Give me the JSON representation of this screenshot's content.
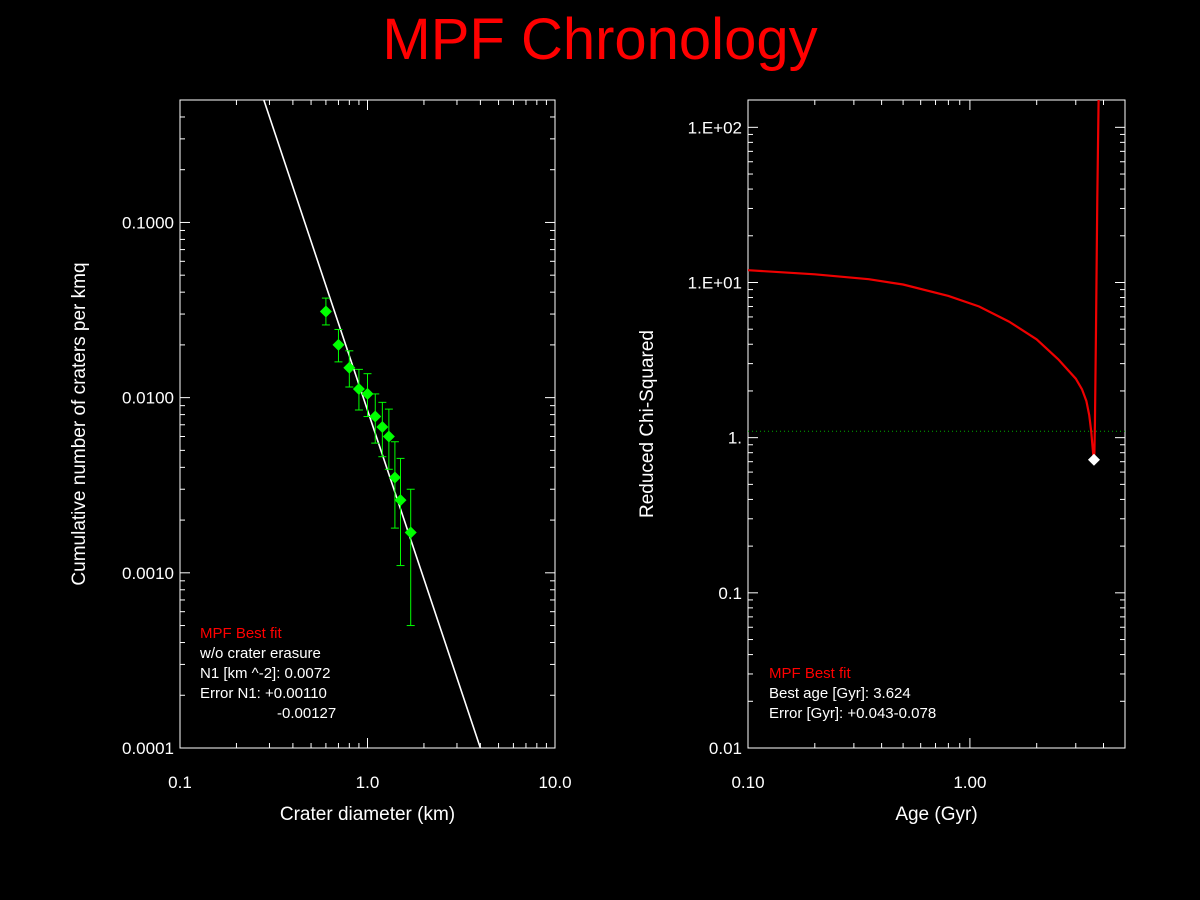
{
  "title": "MPF Chronology",
  "colors": {
    "background": "#000000",
    "title": "#ff0000",
    "axes": "#ffffff",
    "points": "#00ff00",
    "fit_line": "#ffffff",
    "chi_curve": "#ee0000",
    "reference_line": "#00aa00",
    "best_point": "#ffffff"
  },
  "left_annotation": {
    "heading": "MPF Best fit",
    "line1": "w/o crater erasure",
    "line2": "N1 [km ^-2]: 0.0072",
    "line3": "Error N1: +0.00110",
    "line4": "-0.00127"
  },
  "right_annotation": {
    "heading": "MPF Best fit",
    "line1": "Best age [Gyr]: 3.624",
    "line2": "Error [Gyr]: +0.043-0.078"
  },
  "chart_data": [
    {
      "type": "scatter",
      "xlabel": "Crater diameter (km)",
      "ylabel": "Cumulative number of craters per kmq",
      "xscale": "log",
      "yscale": "log",
      "xlim": [
        0.1,
        10.0
      ],
      "ylim": [
        0.0001,
        0.5
      ],
      "xtick_labels": [
        "0.1",
        "1.0",
        "10.0"
      ],
      "ytick_labels": [
        "0.0001",
        "0.0010",
        "0.0100",
        "0.1000"
      ],
      "points": [
        {
          "x": 0.6,
          "y": 0.031,
          "err_low": 0.026,
          "err_high": 0.037
        },
        {
          "x": 0.7,
          "y": 0.02,
          "err_low": 0.016,
          "err_high": 0.0245
        },
        {
          "x": 0.8,
          "y": 0.0148,
          "err_low": 0.0115,
          "err_high": 0.0185
        },
        {
          "x": 0.9,
          "y": 0.0112,
          "err_low": 0.0085,
          "err_high": 0.0145
        },
        {
          "x": 1.0,
          "y": 0.0105,
          "err_low": 0.0078,
          "err_high": 0.0137
        },
        {
          "x": 1.1,
          "y": 0.0078,
          "err_low": 0.0055,
          "err_high": 0.0105
        },
        {
          "x": 1.2,
          "y": 0.0068,
          "err_low": 0.0046,
          "err_high": 0.0094
        },
        {
          "x": 1.3,
          "y": 0.006,
          "err_low": 0.0039,
          "err_high": 0.0086
        },
        {
          "x": 1.4,
          "y": 0.0035,
          "err_low": 0.0018,
          "err_high": 0.0056
        },
        {
          "x": 1.5,
          "y": 0.0026,
          "err_low": 0.0011,
          "err_high": 0.0045
        },
        {
          "x": 1.7,
          "y": 0.0017,
          "err_low": 0.0005,
          "err_high": 0.003
        }
      ],
      "fit_line": [
        [
          0.28,
          0.5
        ],
        [
          4.0,
          0.0001
        ]
      ]
    },
    {
      "type": "line",
      "xlabel": "Age (Gyr)",
      "ylabel": "Reduced Chi-Squared",
      "xscale": "log",
      "yscale": "log",
      "xlim": [
        0.1,
        5.0
      ],
      "ylim": [
        0.01,
        150
      ],
      "xtick_labels": [
        "0.10",
        "1.00"
      ],
      "ytick_labels": [
        "0.01",
        "0.1",
        "1.",
        "1.E+01",
        "1.E+02"
      ],
      "series": [
        {
          "x": [
            0.1,
            0.2,
            0.35,
            0.5,
            0.8,
            1.1,
            1.5,
            2.0,
            2.5,
            3.0,
            3.2,
            3.35,
            3.45,
            3.52,
            3.57,
            3.6,
            3.62,
            3.64,
            3.66,
            3.7,
            3.75,
            3.8
          ],
          "y": [
            12.0,
            11.3,
            10.5,
            9.7,
            8.2,
            7.0,
            5.6,
            4.3,
            3.2,
            2.4,
            2.05,
            1.72,
            1.4,
            1.1,
            0.88,
            0.77,
            0.72,
            0.8,
            1.2,
            5.0,
            35.0,
            150.0
          ]
        }
      ],
      "reference_y": 1.1,
      "best_point": {
        "x": 3.624,
        "y": 0.72
      }
    }
  ]
}
